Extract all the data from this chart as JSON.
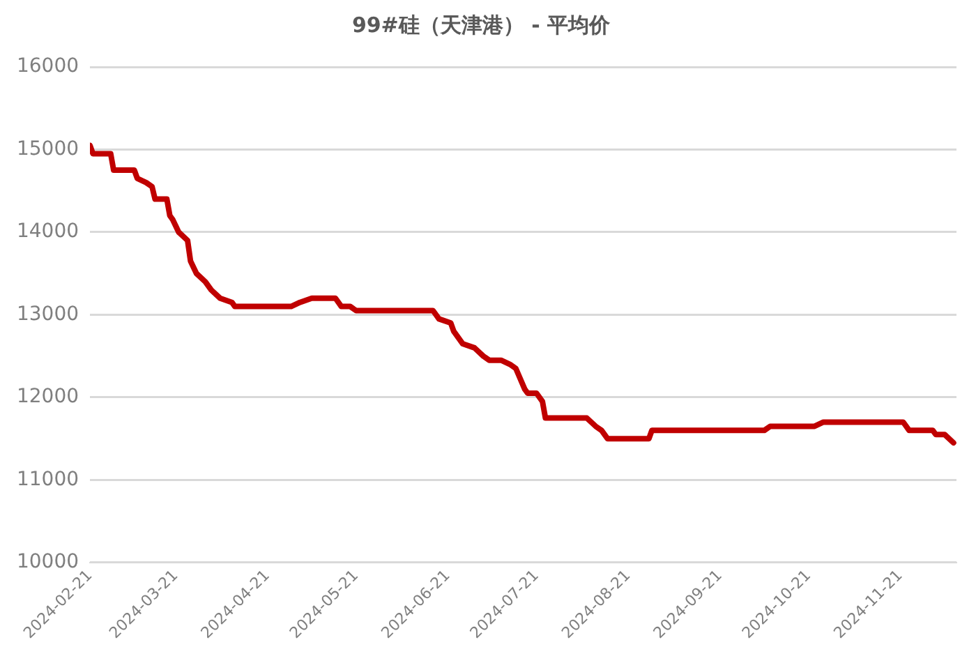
{
  "chart_data": {
    "type": "line",
    "title": "99#硅（天津港） - 平均价",
    "x": [
      "2024-02-21",
      "2024-02-22",
      "2024-02-28",
      "2024-02-29",
      "2024-03-07",
      "2024-03-08",
      "2024-03-11",
      "2024-03-13",
      "2024-03-14",
      "2024-03-18",
      "2024-03-19",
      "2024-03-20",
      "2024-03-22",
      "2024-03-25",
      "2024-03-26",
      "2024-03-28",
      "2024-03-31",
      "2024-04-02",
      "2024-04-05",
      "2024-04-09",
      "2024-04-10",
      "2024-04-29",
      "2024-05-02",
      "2024-05-06",
      "2024-05-14",
      "2024-05-16",
      "2024-05-19",
      "2024-05-21",
      "2024-06-16",
      "2024-06-18",
      "2024-06-22",
      "2024-06-23",
      "2024-06-26",
      "2024-06-30",
      "2024-07-03",
      "2024-07-05",
      "2024-07-09",
      "2024-07-12",
      "2024-07-14",
      "2024-07-17",
      "2024-07-18",
      "2024-07-21",
      "2024-07-23",
      "2024-07-24",
      "2024-08-07",
      "2024-08-10",
      "2024-08-12",
      "2024-08-14",
      "2024-08-28",
      "2024-08-29",
      "2024-10-06",
      "2024-10-08",
      "2024-10-23",
      "2024-10-26",
      "2024-11-22",
      "2024-11-24",
      "2024-12-02",
      "2024-12-03",
      "2024-12-06",
      "2024-12-09"
    ],
    "series": [
      {
        "color": "#c00000",
        "values": [
          15050,
          14950,
          14950,
          14750,
          14750,
          14650,
          14600,
          14550,
          14400,
          14400,
          14200,
          14150,
          14000,
          13900,
          13650,
          13500,
          13400,
          13300,
          13200,
          13150,
          13100,
          13100,
          13150,
          13200,
          13200,
          13100,
          13100,
          13050,
          13050,
          12950,
          12900,
          12800,
          12650,
          12600,
          12500,
          12450,
          12450,
          12400,
          12350,
          12100,
          12050,
          12050,
          11950,
          11750,
          11750,
          11650,
          11600,
          11500,
          11500,
          11600,
          11600,
          11650,
          11650,
          11700,
          11700,
          11600,
          11600,
          11550,
          11550,
          11450
        ]
      }
    ],
    "xlim": [
      "2024-02-21",
      "2024-12-10"
    ],
    "xticks": [
      "2024-02-21",
      "2024-03-21",
      "2024-04-21",
      "2024-05-21",
      "2024-06-21",
      "2024-07-21",
      "2024-08-21",
      "2024-09-21",
      "2024-10-21",
      "2024-11-21"
    ],
    "ylim": [
      10000,
      16000
    ],
    "yticks": [
      10000,
      11000,
      12000,
      13000,
      14000,
      15000,
      16000
    ],
    "grid": "y",
    "legend": false,
    "marker": "none",
    "line_style": "solid"
  }
}
